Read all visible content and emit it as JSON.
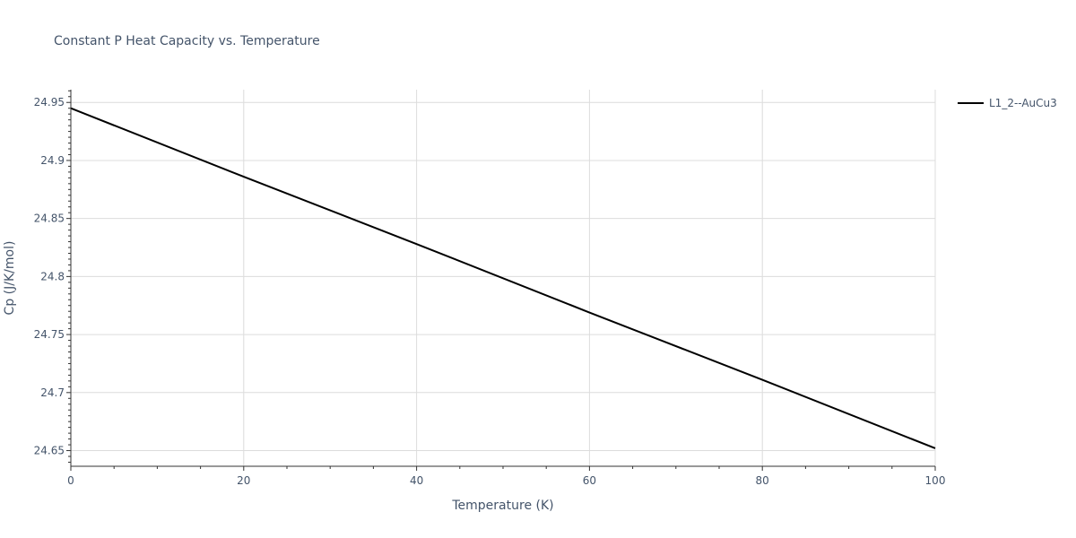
{
  "chart_data": {
    "type": "line",
    "title": "Constant P Heat Capacity vs. Temperature",
    "xlabel": "Temperature (K)",
    "ylabel": "Cp (J/K/mol)",
    "xlim": [
      0,
      100
    ],
    "ylim": [
      24.6365,
      24.961
    ],
    "x_ticks": [
      0,
      20,
      40,
      60,
      80,
      100
    ],
    "x_tick_labels": [
      "0",
      "20",
      "40",
      "60",
      "80",
      "100"
    ],
    "y_ticks": [
      24.65,
      24.7,
      24.75,
      24.8,
      24.85,
      24.9,
      24.95
    ],
    "y_tick_labels": [
      "24.65",
      "24.7",
      "24.75",
      "24.8",
      "24.85",
      "24.9",
      "24.95"
    ],
    "grid": true,
    "legend_position": "top-right",
    "series": [
      {
        "name": "L1_2--AuCu3",
        "color": "#000000",
        "x": [
          0,
          20,
          40,
          60,
          80,
          100
        ],
        "y": [
          24.945,
          24.886,
          24.828,
          24.769,
          24.711,
          24.652
        ]
      }
    ]
  }
}
